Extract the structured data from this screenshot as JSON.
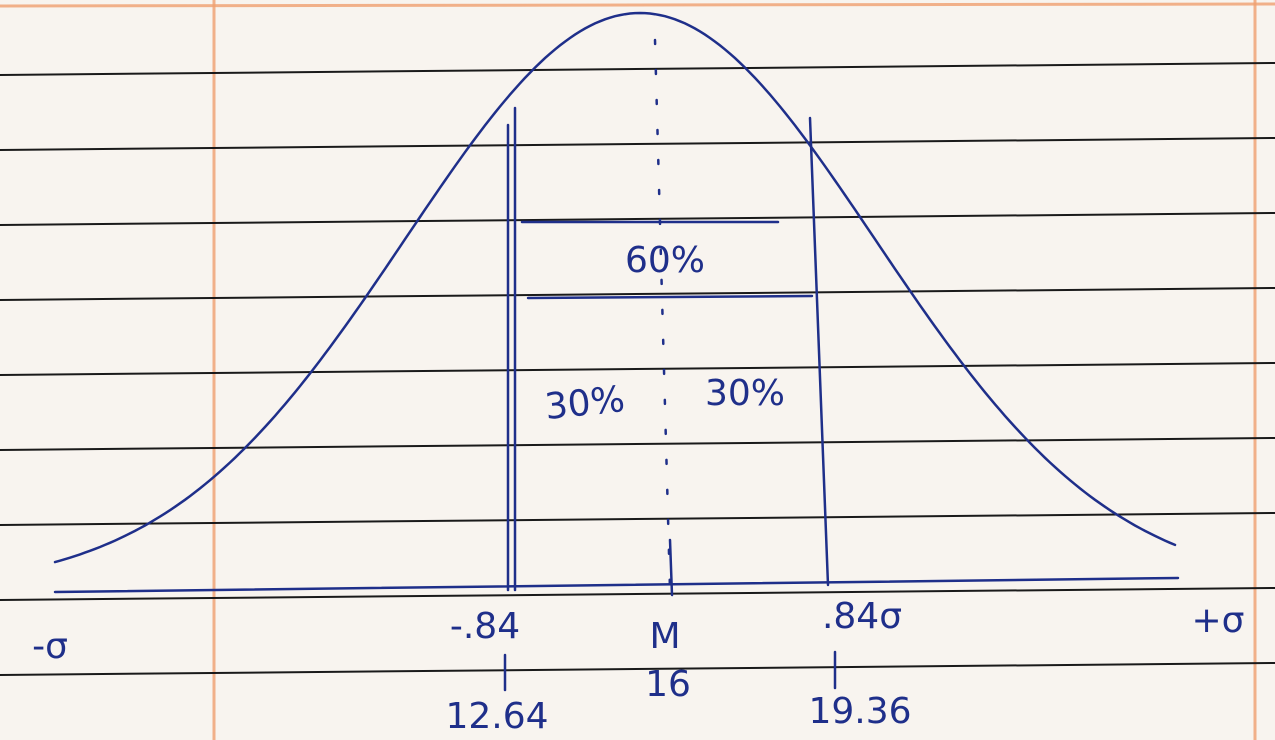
{
  "regions": [
    {
      "label": "60%"
    },
    {
      "label": "30%"
    },
    {
      "label": "30%"
    }
  ],
  "axis": {
    "left_end": "-σ",
    "right_end": "+σ",
    "left_cut": "-.84",
    "right_cut": ".84σ",
    "center": "M",
    "center_value": "16",
    "left_value": "12.64",
    "right_value": "19.36"
  }
}
